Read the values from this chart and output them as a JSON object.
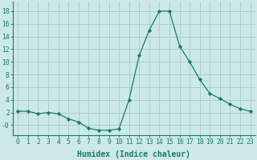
{
  "x": [
    0,
    1,
    2,
    3,
    4,
    5,
    6,
    7,
    8,
    9,
    10,
    11,
    12,
    13,
    14,
    15,
    16,
    17,
    18,
    19,
    20,
    21,
    22,
    23
  ],
  "y": [
    2.2,
    2.2,
    1.8,
    2.0,
    1.8,
    1.0,
    0.5,
    -0.5,
    -0.8,
    -0.8,
    -0.6,
    4.0,
    11.0,
    15.0,
    18.0,
    18.0,
    12.5,
    10.0,
    7.2,
    5.0,
    4.2,
    3.3,
    2.6,
    2.2
  ],
  "line_color": "#1a7a6e",
  "marker": "D",
  "marker_size": 2.2,
  "background_color": "#cce8e8",
  "grid_color": "#aacfcf",
  "xlabel": "Humidex (Indice chaleur)",
  "xlim": [
    -0.5,
    23.5
  ],
  "ylim": [
    -1.6,
    19.5
  ],
  "yticks": [
    0,
    2,
    4,
    6,
    8,
    10,
    12,
    14,
    16,
    18
  ],
  "ytick_labels": [
    "-0",
    "2",
    "4",
    "6",
    "8",
    "10",
    "12",
    "14",
    "16",
    "18"
  ],
  "xticks": [
    0,
    1,
    2,
    3,
    4,
    5,
    6,
    7,
    8,
    9,
    10,
    11,
    12,
    13,
    14,
    15,
    16,
    17,
    18,
    19,
    20,
    21,
    22,
    23
  ],
  "axis_fontsize": 6.5,
  "tick_fontsize": 5.8,
  "xlabel_fontsize": 7.0
}
